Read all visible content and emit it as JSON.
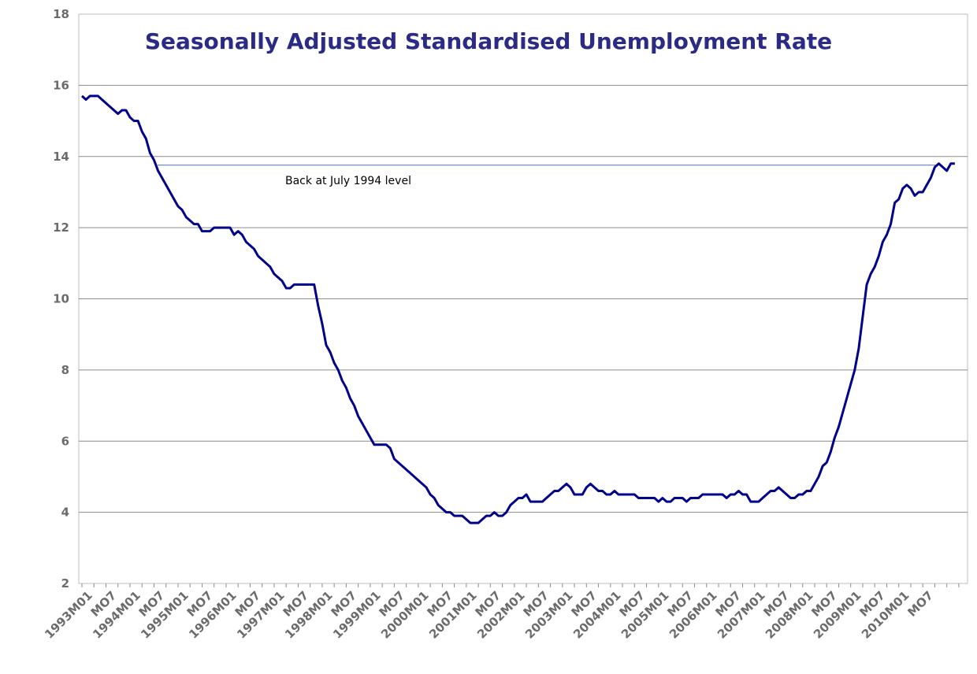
{
  "chart_data": {
    "type": "line",
    "title": "Seasonally Adjusted Standardised Unemployment Rate",
    "xlabel": "",
    "ylabel": "",
    "ylim": [
      2,
      18
    ],
    "yticks": [
      2,
      4,
      6,
      8,
      10,
      12,
      14,
      16,
      18
    ],
    "grid": "horizontal",
    "legend": "none",
    "x_tick_labels": [
      "1993M01",
      "MO7",
      "1994M01",
      "MO7",
      "1995M01",
      "MO7",
      "1996M01",
      "MO7",
      "1997M01",
      "MO7",
      "1998M01",
      "MO7",
      "1999M01",
      "MO7",
      "2000M01",
      "MO7",
      "2001M01",
      "MO7",
      "2002M01",
      "MO7",
      "2003M01",
      "MO7",
      "2004M01",
      "MO7",
      "2005M01",
      "MO7",
      "2006M01",
      "MO7",
      "2007M01",
      "MO7",
      "2008M01",
      "MO7",
      "2009M01",
      "MO7",
      "2010M01",
      "MO7"
    ],
    "period": {
      "start": "1993M01",
      "months": 221
    },
    "series": [
      {
        "name": "",
        "color": "#00008b",
        "values": [
          15.7,
          15.6,
          15.7,
          15.7,
          15.7,
          15.6,
          15.5,
          15.4,
          15.3,
          15.2,
          15.3,
          15.3,
          15.1,
          15.0,
          15.0,
          14.7,
          14.5,
          14.1,
          13.9,
          13.6,
          13.4,
          13.2,
          13.0,
          12.8,
          12.6,
          12.5,
          12.3,
          12.2,
          12.1,
          12.1,
          11.9,
          11.9,
          11.9,
          12.0,
          12.0,
          12.0,
          12.0,
          12.0,
          11.8,
          11.9,
          11.8,
          11.6,
          11.5,
          11.4,
          11.2,
          11.1,
          11.0,
          10.9,
          10.7,
          10.6,
          10.5,
          10.3,
          10.3,
          10.4,
          10.4,
          10.4,
          10.4,
          10.4,
          10.4,
          9.8,
          9.3,
          8.7,
          8.5,
          8.2,
          8.0,
          7.7,
          7.5,
          7.2,
          7.0,
          6.7,
          6.5,
          6.3,
          6.1,
          5.9,
          5.9,
          5.9,
          5.9,
          5.8,
          5.5,
          5.4,
          5.3,
          5.2,
          5.1,
          5.0,
          4.9,
          4.8,
          4.7,
          4.5,
          4.4,
          4.2,
          4.1,
          4.0,
          4.0,
          3.9,
          3.9,
          3.9,
          3.8,
          3.7,
          3.7,
          3.7,
          3.8,
          3.9,
          3.9,
          4.0,
          3.9,
          3.9,
          4.0,
          4.2,
          4.3,
          4.4,
          4.4,
          4.5,
          4.3,
          4.3,
          4.3,
          4.3,
          4.4,
          4.5,
          4.6,
          4.6,
          4.7,
          4.8,
          4.7,
          4.5,
          4.5,
          4.5,
          4.7,
          4.8,
          4.7,
          4.6,
          4.6,
          4.5,
          4.5,
          4.6,
          4.5,
          4.5,
          4.5,
          4.5,
          4.5,
          4.4,
          4.4,
          4.4,
          4.4,
          4.4,
          4.3,
          4.4,
          4.3,
          4.3,
          4.4,
          4.4,
          4.4,
          4.3,
          4.4,
          4.4,
          4.4,
          4.5,
          4.5,
          4.5,
          4.5,
          4.5,
          4.5,
          4.4,
          4.5,
          4.5,
          4.6,
          4.5,
          4.5,
          4.3,
          4.3,
          4.3,
          4.4,
          4.5,
          4.6,
          4.6,
          4.7,
          4.6,
          4.5,
          4.4,
          4.4,
          4.5,
          4.5,
          4.6,
          4.6,
          4.8,
          5.0,
          5.3,
          5.4,
          5.7,
          6.1,
          6.4,
          6.8,
          7.2,
          7.6,
          8.0,
          8.6,
          9.5,
          10.4,
          10.7,
          10.9,
          11.2,
          11.6,
          11.8,
          12.1,
          12.7,
          12.8,
          13.1,
          13.2,
          13.1,
          12.9,
          13.0,
          13.0,
          13.2,
          13.4,
          13.7,
          13.8,
          13.7,
          13.6,
          13.8,
          13.8
        ]
      }
    ],
    "reference_line": {
      "value": 13.8,
      "color": "#4a6fd1"
    },
    "annotations": [
      {
        "text": "Back at July 1994 level"
      }
    ]
  }
}
